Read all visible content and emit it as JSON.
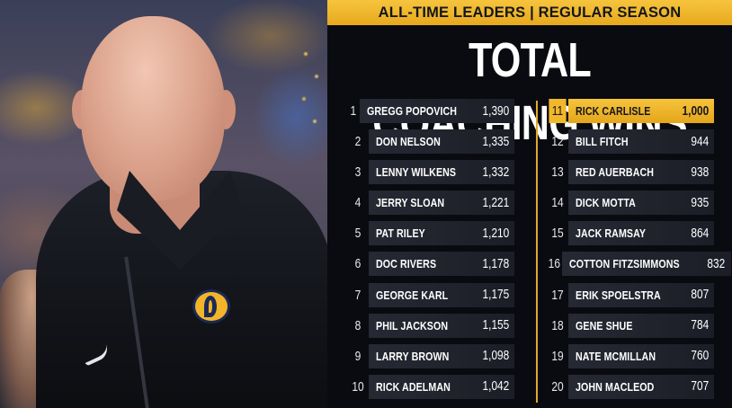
{
  "banner": "ALL-TIME LEADERS | REGULAR SEASON",
  "title": "TOTAL COACHING WINS",
  "colors": {
    "accent": "#f2b82c",
    "background": "#0a0b10",
    "row": "#22242e"
  },
  "photo": {
    "subject_icon": "coach-photo"
  },
  "leaders_left": [
    {
      "rank": "1",
      "name": "GREGG POPOVICH",
      "wins": "1,390"
    },
    {
      "rank": "2",
      "name": "DON NELSON",
      "wins": "1,335"
    },
    {
      "rank": "3",
      "name": "LENNY WILKENS",
      "wins": "1,332"
    },
    {
      "rank": "4",
      "name": "JERRY SLOAN",
      "wins": "1,221"
    },
    {
      "rank": "5",
      "name": "PAT RILEY",
      "wins": "1,210"
    },
    {
      "rank": "6",
      "name": "DOC RIVERS",
      "wins": "1,178"
    },
    {
      "rank": "7",
      "name": "GEORGE KARL",
      "wins": "1,175"
    },
    {
      "rank": "8",
      "name": "PHIL JACKSON",
      "wins": "1,155"
    },
    {
      "rank": "9",
      "name": "LARRY BROWN",
      "wins": "1,098"
    },
    {
      "rank": "10",
      "name": "RICK ADELMAN",
      "wins": "1,042"
    }
  ],
  "leaders_right": [
    {
      "rank": "11",
      "name": "RICK CARLISLE",
      "wins": "1,000",
      "highlight": true
    },
    {
      "rank": "12",
      "name": "BILL FITCH",
      "wins": "944"
    },
    {
      "rank": "13",
      "name": "RED AUERBACH",
      "wins": "938"
    },
    {
      "rank": "14",
      "name": "DICK MOTTA",
      "wins": "935"
    },
    {
      "rank": "15",
      "name": "JACK RAMSAY",
      "wins": "864"
    },
    {
      "rank": "16",
      "name": "COTTON FITZSIMMONS",
      "wins": "832"
    },
    {
      "rank": "17",
      "name": "ERIK SPOELSTRA",
      "wins": "807"
    },
    {
      "rank": "18",
      "name": "GENE SHUE",
      "wins": "784"
    },
    {
      "rank": "19",
      "name": "NATE MCMILLAN",
      "wins": "760"
    },
    {
      "rank": "20",
      "name": "JOHN MACLEOD",
      "wins": "707"
    }
  ]
}
